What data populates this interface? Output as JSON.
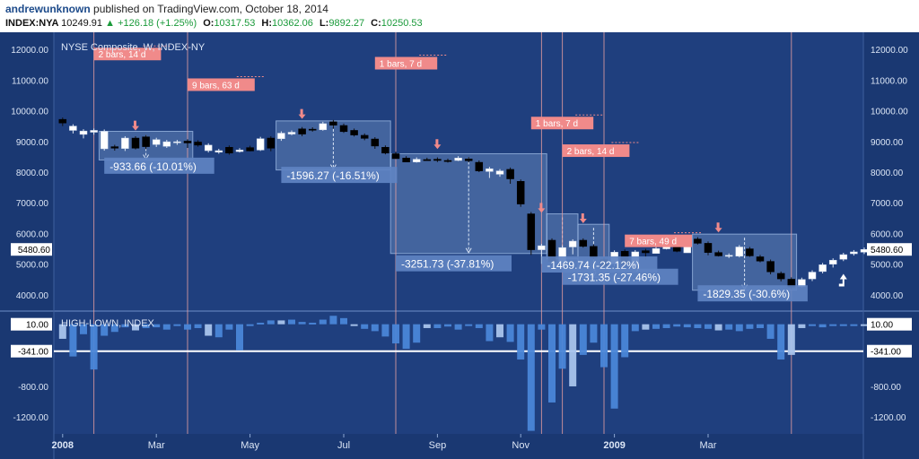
{
  "header": {
    "author": "andrewunknown",
    "published_text": "published on TradingView.com, October 18, 2014",
    "symbol": "INDEX:NYA",
    "last": "10249.91",
    "change": "+126.18 (+1.25%)",
    "open_label": "O:",
    "open": "10317.53",
    "high_label": "H:",
    "high": "10362.06",
    "low_label": "L:",
    "low": "9892.27",
    "close_label": "C:",
    "close": "10250.53"
  },
  "colors": {
    "background": "#1f3f7e",
    "up": "#ffffff",
    "down": "#000000",
    "zone": "#8fb0e0",
    "marker": "#f08a8a",
    "vline": "#e8a0a0",
    "histogram": "#4a86d8"
  },
  "chart_data": [
    {
      "type": "candlestick",
      "title": "NYSE Composite, W, INDEX-NY",
      "y_ticks": [
        4000,
        5000,
        6000,
        7000,
        8000,
        9000,
        10000,
        11000,
        12000
      ],
      "y_tick_labels": [
        "4000.00",
        "5000.00",
        "6000.00",
        "7000.00",
        "8000.00",
        "9000.00",
        "10000.00",
        "11000.00",
        "12000.00"
      ],
      "ylim": [
        3500,
        12500
      ],
      "x_labels": [
        "2008",
        "Mar",
        "May",
        "Jul",
        "Sep",
        "Nov",
        "2009",
        "Mar"
      ],
      "x_label_weeks": [
        0,
        9,
        18,
        27,
        36,
        44,
        53,
        62
      ],
      "last_price_label": "5480.60",
      "candles": [
        [
          9720,
          9600,
          9500
        ],
        [
          9360,
          9500,
          9260
        ],
        [
          9230,
          9340,
          9100
        ],
        [
          9300,
          9360,
          9220
        ],
        [
          8760,
          9330,
          8700
        ],
        [
          8830,
          8780,
          8700
        ],
        [
          8770,
          9110,
          8690
        ],
        [
          9110,
          8780,
          8740
        ],
        [
          9150,
          8830,
          8750
        ],
        [
          8900,
          9060,
          8820
        ],
        [
          8840,
          8990,
          8790
        ],
        [
          8980,
          8990,
          8890
        ],
        [
          9010,
          8950,
          8790
        ],
        [
          8980,
          8880,
          8830
        ],
        [
          8700,
          8880,
          8640
        ],
        [
          8650,
          8700,
          8600
        ],
        [
          8810,
          8620,
          8570
        ],
        [
          8670,
          8720,
          8640
        ],
        [
          8800,
          8690,
          8680
        ],
        [
          8720,
          9090,
          8690
        ],
        [
          9110,
          8780,
          8680
        ],
        [
          9090,
          9270,
          9020
        ],
        [
          9240,
          9300,
          9200
        ],
        [
          9410,
          9240,
          9170
        ],
        [
          9400,
          9380,
          9320
        ],
        [
          9380,
          9580,
          9350
        ],
        [
          9640,
          9530,
          9420
        ],
        [
          9520,
          9320,
          9280
        ],
        [
          9360,
          9210,
          9160
        ],
        [
          9200,
          9100,
          9040
        ],
        [
          9080,
          8850,
          8760
        ],
        [
          8810,
          8620,
          8580
        ],
        [
          8600,
          8440,
          8430
        ],
        [
          8460,
          8330,
          8350
        ],
        [
          8330,
          8420,
          8310
        ],
        [
          8410,
          8400,
          8380
        ],
        [
          8420,
          8380,
          8330
        ],
        [
          8380,
          8350,
          8310
        ],
        [
          8380,
          8460,
          8360
        ],
        [
          8430,
          8370,
          8320
        ],
        [
          8320,
          8040,
          8000
        ],
        [
          8020,
          8110,
          7810
        ],
        [
          7930,
          8040,
          7850
        ],
        [
          8090,
          7780,
          7620
        ],
        [
          7700,
          6960,
          6870
        ],
        [
          6640,
          5470,
          5300
        ],
        [
          5470,
          5600,
          5010
        ],
        [
          5780,
          5080,
          4960
        ],
        [
          5080,
          5540,
          5040
        ],
        [
          5560,
          5750,
          5320
        ],
        [
          5780,
          5580,
          5540
        ],
        [
          5580,
          5210,
          5160
        ],
        [
          5150,
          4940,
          4800
        ],
        [
          5010,
          5390,
          4930
        ],
        [
          5420,
          5000,
          4950
        ],
        [
          4960,
          5400,
          4950
        ],
        [
          5440,
          5370,
          5140
        ],
        [
          5350,
          5510,
          5360
        ],
        [
          5500,
          5610,
          5480
        ],
        [
          5600,
          5420,
          5390
        ],
        [
          5370,
          5780,
          5370
        ],
        [
          5820,
          5680,
          5640
        ],
        [
          5680,
          5380,
          5290
        ],
        [
          5380,
          5270,
          5250
        ],
        [
          5280,
          5290,
          5200
        ],
        [
          5260,
          5560,
          5220
        ],
        [
          5500,
          5270,
          5240
        ],
        [
          5240,
          5100,
          5060
        ],
        [
          5090,
          4750,
          4670
        ],
        [
          4700,
          4520,
          4440
        ],
        [
          4510,
          4250,
          4180
        ],
        [
          4270,
          4500,
          4240
        ],
        [
          4520,
          4740,
          4450
        ],
        [
          4760,
          4980,
          4700
        ],
        [
          5000,
          5130,
          4890
        ],
        [
          5160,
          5310,
          5100
        ],
        [
          5340,
          5400,
          5280
        ],
        [
          5390,
          5480,
          5330
        ]
      ],
      "time_spans": [
        {
          "label": "2 bars, 14 d"
        },
        {
          "label": "9 bars, 63 d"
        },
        {
          "label": "1 bars, 7 d"
        },
        {
          "label": "1 bars, 7 d"
        },
        {
          "label": "2 bars, 14 d"
        },
        {
          "label": "7 bars, 49 d"
        }
      ],
      "declines": [
        {
          "label": "-933.66 (-10.01%)",
          "from": 9330,
          "to": 8396
        },
        {
          "label": "-1596.27 (-16.51%)",
          "from": 9670,
          "to": 8070
        },
        {
          "label": "-3251.73 (-37.81%)",
          "from": 8600,
          "to": 5348
        },
        {
          "label": "-1469.74 (-22.12%)",
          "from": 6640,
          "to": 5170
        },
        {
          "label": "-1731.35 (-27.46%)",
          "from": 6300,
          "to": 4570
        },
        {
          "label": "-1829.35 (-30.6%)",
          "from": 5980,
          "to": 4150
        }
      ]
    },
    {
      "type": "bar",
      "title": "HIGH-LOWN, INDEX",
      "y_tick_labels": [
        "10.00",
        "-341.00",
        "-800.00",
        "-1200.00"
      ],
      "y_ticks": [
        10,
        -341,
        -800,
        -1200
      ],
      "ylim": [
        -1420,
        170
      ],
      "baseline": -341,
      "values": [
        -180,
        -410,
        -120,
        -580,
        -140,
        -90,
        -30,
        -70,
        -40,
        -30,
        -60,
        -10,
        -60,
        -40,
        -140,
        -160,
        -60,
        -330,
        -10,
        30,
        60,
        60,
        70,
        40,
        30,
        70,
        120,
        90,
        -10,
        -50,
        -80,
        -150,
        -240,
        -310,
        -230,
        -40,
        -40,
        -20,
        -60,
        -10,
        -40,
        -210,
        -160,
        -220,
        -450,
        -1380,
        -60,
        -1010,
        -570,
        -800,
        -390,
        -230,
        -550,
        -1090,
        -420,
        -80,
        -60,
        -50,
        -40,
        -20,
        -30,
        -40,
        -50,
        -70,
        -60,
        -80,
        -50,
        -40,
        -180,
        -450,
        -390,
        -40,
        -10,
        -30,
        -10,
        -10,
        -10,
        -10
      ]
    }
  ]
}
